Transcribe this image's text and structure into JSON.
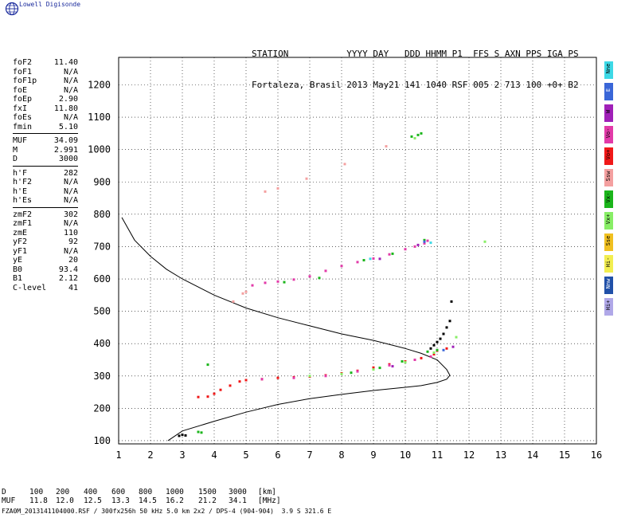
{
  "brand": {
    "name": "Lowell Digisonde",
    "logo_icon": "globe-icon"
  },
  "header": {
    "line1": "STATION           YYYY DAY   DDD HHMM P1  FFS S AXN PPS IGA PS",
    "line2": "Fortaleza, Brasil 2013 May21 141 1040 RSF 005 2 713 100 +0+ B2"
  },
  "params_group1": [
    {
      "label": "foF2",
      "value": "11.40"
    },
    {
      "label": "foF1",
      "value": "N/A"
    },
    {
      "label": "foF1p",
      "value": "N/A"
    },
    {
      "label": "foE",
      "value": "N/A"
    },
    {
      "label": "foEp",
      "value": "2.90"
    },
    {
      "label": "fxI",
      "value": "11.80"
    },
    {
      "label": "foEs",
      "value": "N/A"
    },
    {
      "label": "fmin",
      "value": "5.10"
    }
  ],
  "params_group2": [
    {
      "label": "MUF",
      "value": "34.09"
    },
    {
      "label": "M",
      "value": "2.991"
    },
    {
      "label": "D",
      "value": "3000"
    }
  ],
  "params_group3": [
    {
      "label": "h'F",
      "value": "282"
    },
    {
      "label": "h'F2",
      "value": "N/A"
    },
    {
      "label": "h'E",
      "value": "N/A"
    },
    {
      "label": "h'Es",
      "value": "N/A"
    }
  ],
  "params_group4": [
    {
      "label": "zmF2",
      "value": "302"
    },
    {
      "label": "zmF1",
      "value": "N/A"
    },
    {
      "label": "zmE",
      "value": "110"
    },
    {
      "label": "yF2",
      "value": "92"
    },
    {
      "label": "yF1",
      "value": "N/A"
    },
    {
      "label": "yE",
      "value": "20"
    },
    {
      "label": "B0",
      "value": "93.4"
    },
    {
      "label": "B1",
      "value": "2.12"
    },
    {
      "label": "C-level",
      "value": "41"
    }
  ],
  "legend": [
    {
      "label": "Nne",
      "color": "#3dd9e6"
    },
    {
      "label": "E",
      "color": "#3a66d8"
    },
    {
      "label": "W",
      "color": "#a020b8"
    },
    {
      "label": "Vo-",
      "color": "#e23aa8"
    },
    {
      "label": "Vo+",
      "color": "#f01818"
    },
    {
      "label": "Ssw",
      "color": "#f4a0a0"
    },
    {
      "label": "Vx-",
      "color": "#1bb51b"
    },
    {
      "label": "Vx+",
      "color": "#88ee66"
    },
    {
      "label": "Sse",
      "color": "#f0c020"
    },
    {
      "label": "Hi-",
      "color": "#f2ee50"
    },
    {
      "label": "Nnw",
      "color": "#2050a8"
    },
    {
      "label": "Hi+",
      "color": "#b0a8e8"
    }
  ],
  "muf_table": {
    "row1_label": "D",
    "row1_values": [
      "100",
      "200",
      "400",
      "600",
      "800",
      "1000",
      "1500",
      "3000"
    ],
    "row1_unit": "[km]",
    "row2_label": "MUF",
    "row2_values": [
      "11.8",
      "12.0",
      "12.5",
      "13.3",
      "14.5",
      "16.2",
      "21.2",
      "34.1"
    ],
    "row2_unit": "[MHz]"
  },
  "footer": "FZA0M_2013141104000.RSF / 300fx256h 50 kHz 5.0 km 2x2 / DPS-4 (904-904)  3.9 S 321.6 E",
  "chart_data": {
    "type": "scatter",
    "title": "",
    "xlabel": "",
    "ylabel": "",
    "xlim": [
      1,
      16
    ],
    "ylim": [
      90,
      1285
    ],
    "x_ticks": [
      1,
      2,
      3,
      4,
      5,
      6,
      7,
      8,
      9,
      10,
      11,
      12,
      13,
      14,
      15,
      16
    ],
    "y_ticks": [
      100,
      200,
      300,
      400,
      500,
      600,
      700,
      800,
      900,
      1000,
      1100,
      1200
    ],
    "grid": true,
    "profile": {
      "color": "#000000",
      "points": [
        [
          1.1,
          790
        ],
        [
          1.5,
          720
        ],
        [
          2.0,
          670
        ],
        [
          2.5,
          630
        ],
        [
          3.0,
          600
        ],
        [
          4.0,
          550
        ],
        [
          5.0,
          510
        ],
        [
          6.0,
          480
        ],
        [
          7.0,
          455
        ],
        [
          8.0,
          430
        ],
        [
          9.0,
          410
        ],
        [
          10.0,
          385
        ],
        [
          10.5,
          370
        ],
        [
          11.0,
          350
        ],
        [
          11.3,
          320
        ],
        [
          11.4,
          302
        ],
        [
          11.3,
          290
        ],
        [
          11.0,
          280
        ],
        [
          10.5,
          270
        ],
        [
          10.0,
          265
        ],
        [
          9.0,
          255
        ],
        [
          8.0,
          243
        ],
        [
          7.0,
          230
        ],
        [
          6.0,
          212
        ],
        [
          5.0,
          188
        ],
        [
          4.0,
          160
        ],
        [
          3.0,
          130
        ],
        [
          2.55,
          100
        ]
      ]
    },
    "series": [
      {
        "name": "Vo+",
        "color": "#f01818",
        "points": [
          [
            3.5,
            235
          ],
          [
            3.8,
            236
          ],
          [
            4.0,
            245
          ],
          [
            4.2,
            257
          ],
          [
            4.5,
            270
          ],
          [
            4.8,
            283
          ],
          [
            5.0,
            287
          ],
          [
            5.5,
            290
          ],
          [
            6.0,
            294
          ],
          [
            6.5,
            296
          ],
          [
            7.0,
            298
          ],
          [
            7.5,
            302
          ],
          [
            8.0,
            308
          ],
          [
            8.5,
            316
          ],
          [
            9.0,
            326
          ],
          [
            9.5,
            336
          ],
          [
            10.0,
            345
          ],
          [
            10.5,
            355
          ],
          [
            10.9,
            367
          ],
          [
            11.0,
            378
          ],
          [
            11.3,
            385
          ]
        ]
      },
      {
        "name": "Vo-",
        "color": "#e23aa8",
        "points": [
          [
            5.2,
            580
          ],
          [
            5.6,
            588
          ],
          [
            6.0,
            592
          ],
          [
            6.5,
            598
          ],
          [
            7.0,
            608
          ],
          [
            7.5,
            625
          ],
          [
            8.0,
            640
          ],
          [
            8.5,
            652
          ],
          [
            9.0,
            663
          ],
          [
            9.5,
            676
          ],
          [
            10.0,
            692
          ],
          [
            10.3,
            700
          ],
          [
            10.6,
            710
          ],
          [
            10.7,
            718
          ],
          [
            5.5,
            290
          ],
          [
            6.5,
            294
          ],
          [
            7.5,
            300
          ],
          [
            8.5,
            314
          ],
          [
            9.5,
            333
          ],
          [
            10.3,
            350
          ],
          [
            10.8,
            360
          ]
        ]
      },
      {
        "name": "Vx-",
        "color": "#1bb51b",
        "points": [
          [
            3.5,
            127
          ],
          [
            3.6,
            125
          ],
          [
            3.8,
            335
          ],
          [
            6.2,
            590
          ],
          [
            7.3,
            603
          ],
          [
            8.7,
            658
          ],
          [
            9.6,
            678
          ],
          [
            10.6,
            720
          ],
          [
            10.2,
            1040
          ],
          [
            10.4,
            1045
          ],
          [
            10.5,
            1050
          ],
          [
            8.3,
            310
          ],
          [
            9.2,
            325
          ],
          [
            9.9,
            345
          ],
          [
            10.7,
            375
          ],
          [
            11.0,
            380
          ]
        ]
      },
      {
        "name": "Vx+",
        "color": "#88ee66",
        "points": [
          [
            7.0,
            300
          ],
          [
            8.0,
            306
          ],
          [
            9.0,
            320
          ],
          [
            10.0,
            342
          ],
          [
            10.9,
            372
          ],
          [
            11.6,
            420
          ],
          [
            12.5,
            715
          ],
          [
            10.3,
            1035
          ]
        ]
      },
      {
        "name": "W",
        "color": "#a020b8",
        "points": [
          [
            9.2,
            662
          ],
          [
            10.4,
            705
          ],
          [
            11.5,
            390
          ],
          [
            9.6,
            330
          ]
        ]
      },
      {
        "name": "E",
        "color": "#3a66d8",
        "points": [
          [
            10.6,
            715
          ],
          [
            11.2,
            380
          ]
        ]
      },
      {
        "name": "Nne",
        "color": "#3dd9e6",
        "points": [
          [
            8.9,
            662
          ],
          [
            10.8,
            712
          ]
        ]
      },
      {
        "name": "Ssw",
        "color": "#f4a0a0",
        "points": [
          [
            5.6,
            870
          ],
          [
            6.0,
            880
          ],
          [
            6.9,
            910
          ],
          [
            8.1,
            955
          ],
          [
            9.4,
            1010
          ],
          [
            4.6,
            530
          ],
          [
            4.9,
            555
          ],
          [
            5.0,
            560
          ]
        ]
      },
      {
        "name": "black",
        "color": "#000000",
        "points": [
          [
            10.8,
            385
          ],
          [
            10.9,
            395
          ],
          [
            11.0,
            405
          ],
          [
            11.1,
            415
          ],
          [
            11.2,
            430
          ],
          [
            11.3,
            450
          ],
          [
            11.4,
            470
          ],
          [
            11.45,
            530
          ],
          [
            2.9,
            115
          ],
          [
            3.0,
            118
          ],
          [
            3.1,
            116
          ]
        ]
      }
    ]
  }
}
